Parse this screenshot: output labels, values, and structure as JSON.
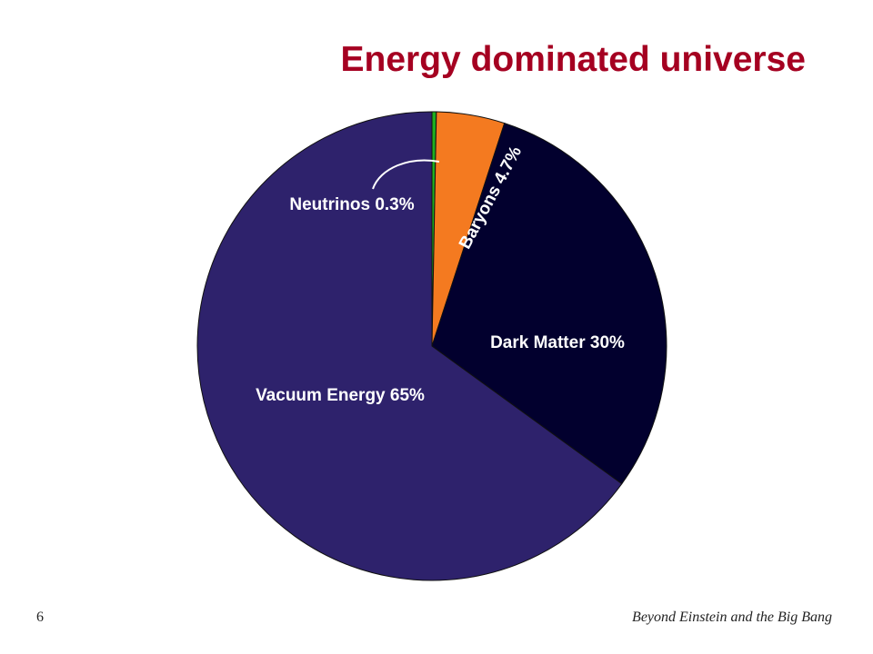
{
  "chart_data": {
    "type": "pie",
    "title": "Energy dominated universe",
    "categories": [
      "Neutrinos",
      "Baryons",
      "Dark Matter",
      "Vacuum Energy"
    ],
    "values": [
      0.3,
      4.7,
      30,
      65
    ],
    "value_labels": [
      "0.3%",
      "4.7%",
      "30%",
      "65%"
    ],
    "colors": [
      "#1fae1f",
      "#f47a20",
      "#02002e",
      "#2e226c"
    ]
  },
  "footer": {
    "slide_number": "6",
    "text": "Beyond Einstein and the Big Bang"
  }
}
